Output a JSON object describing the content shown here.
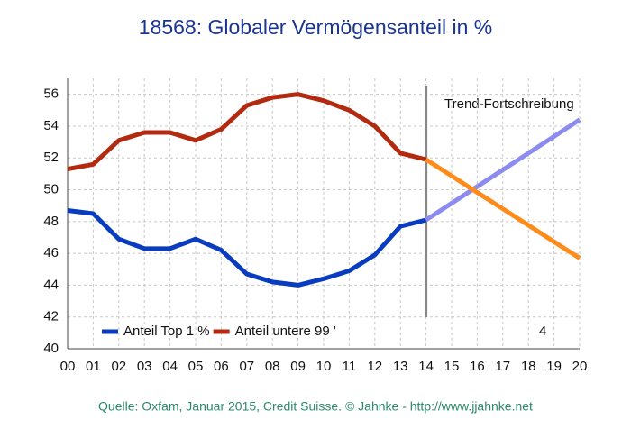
{
  "chart_data": {
    "type": "line",
    "title": "18568: Globaler Vermögensanteil in %",
    "categories": [
      "00",
      "01",
      "02",
      "03",
      "04",
      "05",
      "06",
      "07",
      "08",
      "09",
      "10",
      "11",
      "12",
      "13",
      "14",
      "15",
      "16",
      "17",
      "18",
      "19",
      "20"
    ],
    "series": [
      {
        "name": "Anteil Top 1 %",
        "color": "#0a3cc0",
        "values": [
          48.7,
          48.5,
          46.9,
          46.3,
          46.3,
          46.9,
          46.2,
          44.7,
          44.2,
          44.0,
          44.4,
          44.9,
          45.9,
          47.7,
          48.1,
          null,
          null,
          null,
          null,
          null,
          null
        ]
      },
      {
        "name": "Anteil untere 99 '",
        "color": "#b22a10",
        "values": [
          51.3,
          51.6,
          53.1,
          53.6,
          53.6,
          53.1,
          53.8,
          55.3,
          55.8,
          56.0,
          55.6,
          55.0,
          54.0,
          52.3,
          51.9,
          null,
          null,
          null,
          null,
          null,
          null
        ]
      },
      {
        "color": "#8c8cf0",
        "values": [
          null,
          null,
          null,
          null,
          null,
          null,
          null,
          null,
          null,
          null,
          null,
          null,
          null,
          null,
          48.1,
          49.15,
          50.2,
          51.25,
          52.3,
          53.35,
          54.4
        ]
      },
      {
        "color": "#ff8c1a",
        "values": [
          null,
          null,
          null,
          null,
          null,
          null,
          null,
          null,
          null,
          null,
          null,
          null,
          null,
          null,
          51.9,
          50.87,
          49.83,
          48.8,
          47.77,
          46.73,
          45.7
        ]
      }
    ],
    "legend_extra": "4",
    "annotation": "Trend-Fortschreibung",
    "ylim": [
      40,
      57
    ],
    "yticks": [
      40,
      42,
      44,
      46,
      48,
      50,
      52,
      54,
      56
    ],
    "grid": true,
    "source": "Quelle: Oxfam, Januar 2015, Credit Suisse. © Jahnke - http://www.jjahnke.net"
  }
}
